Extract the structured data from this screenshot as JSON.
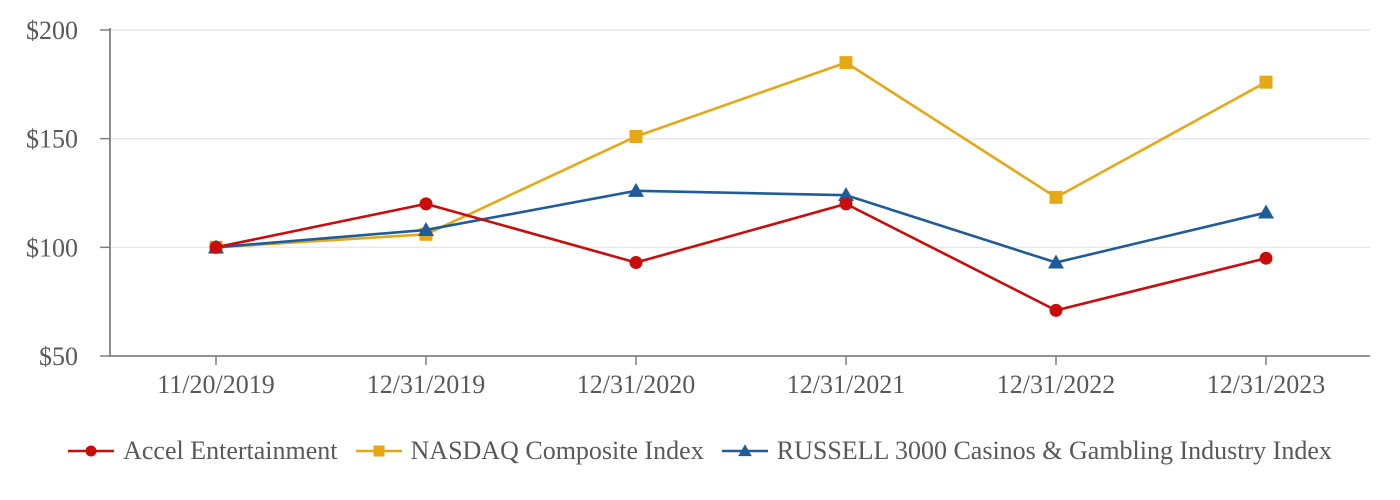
{
  "chart_data": {
    "type": "line",
    "title": "",
    "x_categories": [
      "11/20/2019",
      "12/31/2019",
      "12/31/2020",
      "12/31/2021",
      "12/31/2022",
      "12/31/2023"
    ],
    "y_axis": {
      "tick_labels": [
        "$200",
        "$150",
        "$100",
        "$50"
      ],
      "tick_values": [
        200,
        150,
        100,
        50
      ],
      "ylim": [
        50,
        200
      ],
      "currency_prefix": "$"
    },
    "gridline_values": [
      200,
      150,
      100
    ],
    "grid": "horizontal-light",
    "legend_position": "bottom-center",
    "series": [
      {
        "name": "Accel Entertainment",
        "marker": "circle",
        "color": "#c90c0c",
        "values": [
          100,
          120,
          93,
          120,
          71,
          95
        ]
      },
      {
        "name": "NASDAQ Composite Index",
        "marker": "square",
        "color": "#e6a817",
        "values": [
          100,
          106,
          151,
          185,
          123,
          176
        ]
      },
      {
        "name": "RUSSELL 3000 Casinos & Gambling Industry Index",
        "marker": "triangle",
        "color": "#1f5c99",
        "values": [
          100,
          108,
          126,
          124,
          93,
          116
        ]
      }
    ],
    "draw_order": [
      1,
      2,
      0
    ],
    "colors": {
      "axis": "#808080",
      "gridline": "#e9e9e9",
      "text": "#595959",
      "background": "#ffffff"
    }
  }
}
